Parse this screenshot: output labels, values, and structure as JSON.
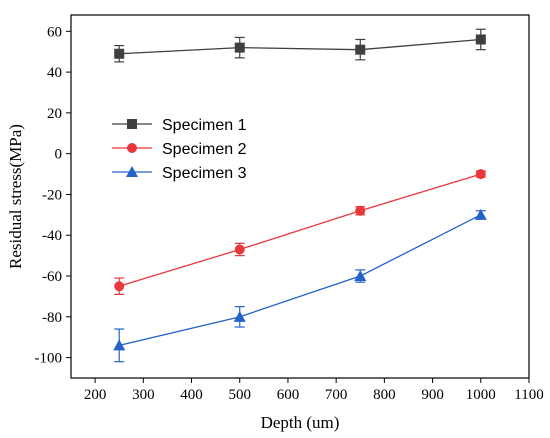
{
  "chart_data": {
    "type": "line",
    "xlabel": "Depth (um)",
    "ylabel": "Residual stress(MPa)",
    "xlim": [
      150,
      1100
    ],
    "ylim": [
      -110,
      68
    ],
    "xticks": [
      200,
      300,
      400,
      500,
      600,
      700,
      800,
      900,
      1000,
      1100
    ],
    "yticks": [
      -100,
      -80,
      -60,
      -40,
      -20,
      0,
      20,
      40,
      60
    ],
    "grid": false,
    "legend_position": "left",
    "series": [
      {
        "name": "Specimen 1",
        "color": "#3f3f3f",
        "marker": "square",
        "x": [
          250,
          500,
          750,
          1000
        ],
        "y": [
          49,
          52,
          51,
          56
        ],
        "error": [
          4,
          5,
          5,
          5
        ]
      },
      {
        "name": "Specimen 2",
        "color": "#e8383b",
        "marker": "circle",
        "x": [
          250,
          500,
          750,
          1000
        ],
        "y": [
          -65,
          -47,
          -28,
          -10
        ],
        "error": [
          4,
          3,
          2,
          1.5
        ]
      },
      {
        "name": "Specimen 3",
        "color": "#2463c9",
        "marker": "triangle",
        "x": [
          250,
          500,
          750,
          1000
        ],
        "y": [
          -94,
          -80,
          -60,
          -30
        ],
        "error": [
          8,
          5,
          3,
          2
        ]
      }
    ]
  }
}
